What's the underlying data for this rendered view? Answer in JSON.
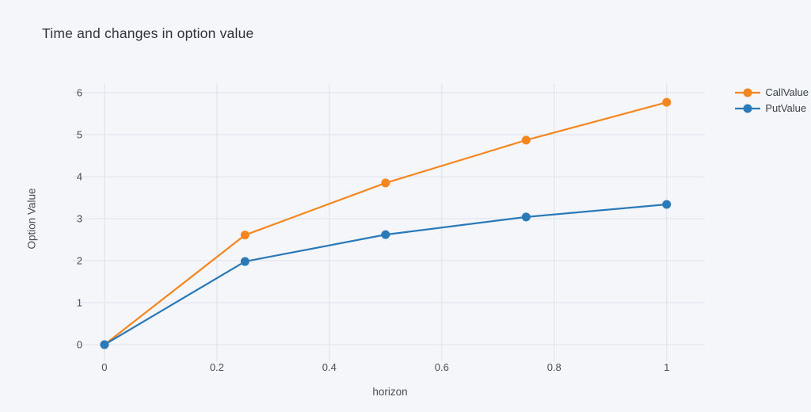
{
  "page": {
    "background": "#f4f6f9"
  },
  "chart_data": {
    "type": "line",
    "title": "Time and changes in option value",
    "xlabel": "horizon",
    "ylabel": "Option Value",
    "x": [
      0,
      0.25,
      0.5,
      0.75,
      1
    ],
    "series": [
      {
        "name": "CallValue",
        "color": "#f5861f",
        "values": [
          0,
          2.61,
          3.85,
          4.87,
          5.77
        ]
      },
      {
        "name": "PutValue",
        "color": "#2a7ab9",
        "values": [
          0,
          1.98,
          2.62,
          3.04,
          3.34
        ]
      }
    ],
    "x_ticks": [
      0,
      0.2,
      0.4,
      0.6,
      0.8,
      1
    ],
    "x_tick_labels": [
      "0",
      "0.2",
      "0.4",
      "0.6",
      "0.8",
      "1"
    ],
    "y_ticks": [
      0,
      1,
      2,
      3,
      4,
      5,
      6
    ],
    "y_tick_labels": [
      "0",
      "1",
      "2",
      "3",
      "4",
      "5",
      "6"
    ],
    "xlim": [
      -0.052,
      1.068
    ],
    "ylim": [
      -0.283,
      6.226
    ],
    "grid": true,
    "legend_position": "right",
    "marker_radius": 5.5,
    "line_width": 2.2,
    "colors": {
      "grid": "#e2e5ed",
      "tick_text": "#4a4e57",
      "axis_title_text": "#4a4e57",
      "title_text": "#31333f",
      "legend_text": "#3c4049"
    }
  }
}
